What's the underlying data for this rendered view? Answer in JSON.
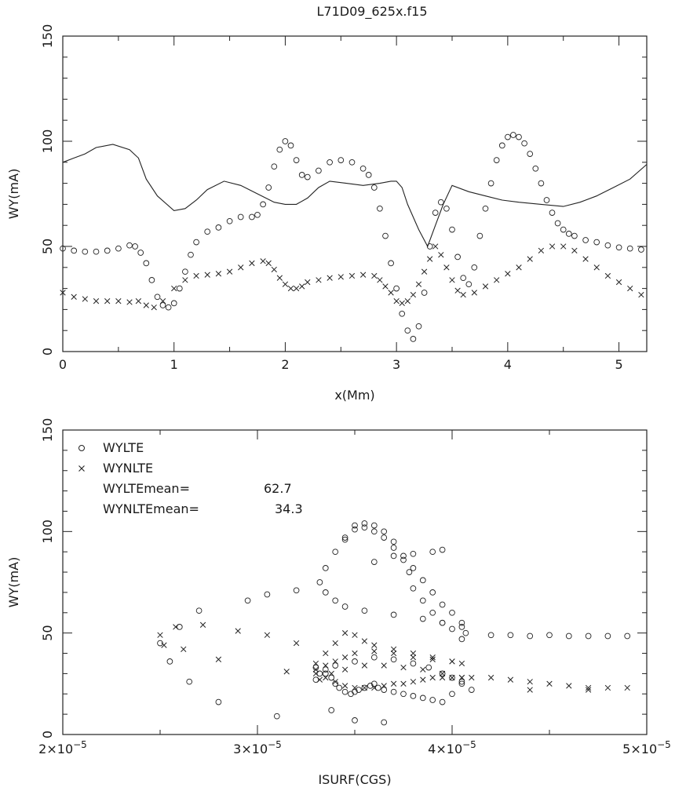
{
  "figure_title": "L71D09_625x.f15",
  "chart_data": [
    {
      "type": "line",
      "xlabel": "x(Mm)",
      "ylabel": "WY(mA)",
      "xlim": [
        0,
        5.25
      ],
      "ylim": [
        0,
        150
      ],
      "xticks": [
        0,
        1,
        2,
        3,
        4,
        5
      ],
      "xtick_labels": [
        "0",
        "1",
        "2",
        "3",
        "4",
        "5"
      ],
      "yticks": [
        0,
        50,
        100,
        150
      ],
      "ytick_labels": [
        "0",
        "50",
        "100",
        "150"
      ],
      "grid": false,
      "series": [
        {
          "style": "line",
          "x": [
            0,
            0.1,
            0.2,
            0.3,
            0.45,
            0.6,
            0.68,
            0.75,
            0.85,
            1.0,
            1.1,
            1.2,
            1.3,
            1.45,
            1.6,
            1.75,
            1.9,
            2.0,
            2.1,
            2.2,
            2.3,
            2.4,
            2.55,
            2.7,
            2.85,
            2.95,
            3.0,
            3.05,
            3.1,
            3.2,
            3.28,
            3.35,
            3.42,
            3.5,
            3.65,
            3.8,
            3.95,
            4.1,
            4.3,
            4.5,
            4.65,
            4.8,
            4.95,
            5.1,
            5.25
          ],
          "y": [
            90,
            92,
            94,
            97,
            98.5,
            96,
            92,
            82,
            74,
            67,
            68,
            72,
            77,
            81,
            79,
            75,
            71,
            70,
            70,
            73,
            78,
            81,
            80,
            79,
            80,
            81,
            81,
            78,
            70,
            58,
            50,
            60,
            70,
            79,
            76,
            74,
            72,
            71,
            70,
            69,
            71,
            74,
            78,
            82,
            89
          ]
        },
        {
          "style": "circle-markers",
          "x": [
            0,
            0.1,
            0.2,
            0.3,
            0.4,
            0.5,
            0.6,
            0.65,
            0.7,
            0.75,
            0.8,
            0.85,
            0.9,
            0.95,
            1.0,
            1.05,
            1.1,
            1.15,
            1.2,
            1.3,
            1.4,
            1.5,
            1.6,
            1.7,
            1.75,
            1.8,
            1.85,
            1.9,
            1.95,
            2.0,
            2.05,
            2.1,
            2.15,
            2.2,
            2.3,
            2.4,
            2.5,
            2.6,
            2.7,
            2.75,
            2.8,
            2.85,
            2.9,
            2.95,
            3.0,
            3.05,
            3.1,
            3.15,
            3.2,
            3.25,
            3.3,
            3.35,
            3.4,
            3.45,
            3.5,
            3.55,
            3.6,
            3.65,
            3.7,
            3.75,
            3.8,
            3.85,
            3.9,
            3.95,
            4.0,
            4.05,
            4.1,
            4.15,
            4.2,
            4.25,
            4.3,
            4.35,
            4.4,
            4.45,
            4.5,
            4.55,
            4.6,
            4.7,
            4.8,
            4.9,
            5.0,
            5.1,
            5.2
          ],
          "y": [
            49,
            48,
            47.5,
            47.5,
            48,
            49,
            50.5,
            50,
            47,
            42,
            34,
            26,
            22,
            21,
            23,
            30,
            38,
            46,
            52,
            57,
            59,
            62,
            64,
            64,
            65,
            70,
            78,
            88,
            96,
            100,
            98,
            91,
            84,
            83,
            86,
            90,
            91,
            90,
            87,
            84,
            78,
            68,
            55,
            42,
            30,
            18,
            10,
            6,
            12,
            28,
            50,
            66,
            71,
            68,
            58,
            45,
            35,
            32,
            40,
            55,
            68,
            80,
            91,
            98,
            102,
            103,
            102,
            99,
            94,
            87,
            80,
            72,
            66,
            61,
            58,
            56,
            55,
            53,
            52,
            50.5,
            49.5,
            49,
            48.5
          ]
        },
        {
          "style": "x-markers",
          "x": [
            0,
            0.1,
            0.2,
            0.3,
            0.4,
            0.5,
            0.6,
            0.68,
            0.75,
            0.82,
            0.9,
            1.0,
            1.1,
            1.2,
            1.3,
            1.4,
            1.5,
            1.6,
            1.7,
            1.8,
            1.85,
            1.9,
            1.95,
            2.0,
            2.05,
            2.1,
            2.15,
            2.2,
            2.3,
            2.4,
            2.5,
            2.6,
            2.7,
            2.8,
            2.85,
            2.9,
            2.95,
            3.0,
            3.05,
            3.1,
            3.15,
            3.2,
            3.25,
            3.3,
            3.35,
            3.4,
            3.45,
            3.5,
            3.55,
            3.6,
            3.7,
            3.8,
            3.9,
            4.0,
            4.1,
            4.2,
            4.3,
            4.4,
            4.5,
            4.6,
            4.7,
            4.8,
            4.9,
            5.0,
            5.1,
            5.2
          ],
          "y": [
            28,
            26,
            25,
            24,
            24,
            24,
            23.5,
            24,
            22,
            21,
            24,
            30,
            34,
            36,
            36.5,
            37,
            38,
            40,
            42,
            43,
            42,
            39,
            35,
            32,
            30,
            30,
            31,
            33,
            34,
            35,
            35.5,
            36,
            36.5,
            36,
            34,
            31,
            28,
            24,
            23,
            24,
            27,
            32,
            38,
            44,
            50,
            46,
            40,
            34,
            29,
            27,
            28,
            31,
            34,
            37,
            40,
            44,
            48,
            50,
            50,
            48,
            44,
            40,
            36,
            33,
            30,
            27
          ]
        }
      ]
    },
    {
      "type": "scatter",
      "xlabel": "ISURF(CGS)",
      "ylabel": "WY(mA)",
      "xlim": [
        2e-05,
        5e-05
      ],
      "ylim": [
        0,
        150
      ],
      "xticks": [
        2e-05,
        3e-05,
        4e-05,
        5e-05
      ],
      "xtick_labels": [
        {
          "base": "2×10",
          "exp": "−5"
        },
        {
          "base": "3×10",
          "exp": "−5"
        },
        {
          "base": "4×10",
          "exp": "−5"
        },
        {
          "base": "5×10",
          "exp": "−5"
        }
      ],
      "yticks": [
        0,
        50,
        100,
        150
      ],
      "ytick_labels": [
        "0",
        "50",
        "100",
        "150"
      ],
      "grid": false,
      "legend_position": "top-left",
      "legend": [
        {
          "marker": "circle",
          "label": "WYLTE"
        },
        {
          "marker": "x",
          "label": "WYNLTE"
        }
      ],
      "annotations": [
        {
          "label": "WYLTEmean=",
          "value": "62.7"
        },
        {
          "label": "WYNLTEmean=",
          "value": "34.3"
        }
      ],
      "series": [
        {
          "name": "WYLTE",
          "marker": "circle",
          "x": [
            2.5e-05,
            2.55e-05,
            2.6e-05,
            2.65e-05,
            2.7e-05,
            2.8e-05,
            2.95e-05,
            3.05e-05,
            3.1e-05,
            3.2e-05,
            3.3e-05,
            3.35e-05,
            3.38e-05,
            3.4e-05,
            3.42e-05,
            3.45e-05,
            3.48e-05,
            3.5e-05,
            3.52e-05,
            3.55e-05,
            3.58e-05,
            3.6e-05,
            3.62e-05,
            3.65e-05,
            3.7e-05,
            3.75e-05,
            3.8e-05,
            3.85e-05,
            3.9e-05,
            3.95e-05,
            4e-05,
            4.05e-05,
            4.1e-05,
            4.2e-05,
            4.3e-05,
            4.4e-05,
            4.5e-05,
            4.6e-05,
            4.7e-05,
            4.8e-05,
            4.9e-05,
            3.45e-05,
            3.5e-05,
            3.55e-05,
            3.6e-05,
            3.65e-05,
            3.7e-05,
            3.75e-05,
            3.8e-05,
            3.85e-05,
            3.9e-05,
            3.95e-05,
            4e-05,
            4.05e-05,
            4.07e-05,
            4.05e-05,
            4e-05,
            3.95e-05,
            3.9e-05,
            3.85e-05,
            3.8e-05,
            3.78e-05,
            3.75e-05,
            3.7e-05,
            3.65e-05,
            3.6e-05,
            3.55e-05,
            3.5e-05,
            3.45e-05,
            3.4e-05,
            3.35e-05,
            3.32e-05,
            3.35e-05,
            3.4e-05,
            3.45e-05,
            3.55e-05,
            3.7e-05,
            3.85e-05,
            3.95e-05,
            4.05e-05,
            3.3e-05,
            3.32e-05,
            3.35e-05,
            3.4e-05,
            3.5e-05,
            3.6e-05,
            3.7e-05,
            3.8e-05,
            3.88e-05,
            3.95e-05,
            4e-05,
            4.05e-05,
            3.65e-05,
            3.5e-05,
            3.38e-05,
            3.6e-05,
            3.7e-05,
            3.8e-05,
            3.9e-05,
            3.95e-05
          ],
          "y": [
            45,
            36,
            53,
            26,
            61,
            16,
            66,
            69,
            9,
            71,
            33,
            30,
            28,
            25,
            23,
            21,
            20,
            21,
            22,
            23,
            24,
            25,
            23,
            22,
            21,
            20,
            19,
            18,
            17,
            16,
            20,
            25,
            22,
            49,
            49,
            48.5,
            49,
            48.5,
            48.5,
            48.5,
            48.5,
            96,
            103,
            104,
            103,
            100,
            95,
            88,
            82,
            76,
            70,
            64,
            60,
            55,
            50,
            47,
            52,
            55,
            60,
            66,
            72,
            80,
            86,
            92,
            97,
            100,
            102,
            101,
            97,
            90,
            82,
            75,
            70,
            66,
            63,
            61,
            59,
            57,
            55,
            53,
            27,
            30,
            32,
            34,
            36,
            38,
            37,
            35,
            33,
            30,
            28,
            26,
            6,
            7,
            12,
            85,
            88,
            89,
            90,
            91
          ]
        },
        {
          "name": "WYNLTE",
          "marker": "x",
          "x": [
            2.5e-05,
            2.52e-05,
            2.58e-05,
            2.62e-05,
            2.72e-05,
            2.8e-05,
            2.9e-05,
            3.05e-05,
            3.15e-05,
            3.2e-05,
            3.3e-05,
            3.35e-05,
            3.4e-05,
            3.45e-05,
            3.5e-05,
            3.55e-05,
            3.6e-05,
            3.65e-05,
            3.7e-05,
            3.75e-05,
            3.8e-05,
            3.85e-05,
            3.9e-05,
            3.95e-05,
            4e-05,
            4.05e-05,
            4.1e-05,
            4.2e-05,
            4.3e-05,
            4.4e-05,
            4.5e-05,
            4.6e-05,
            4.7e-05,
            4.8e-05,
            4.9e-05,
            3.3e-05,
            3.35e-05,
            3.4e-05,
            3.45e-05,
            3.5e-05,
            3.55e-05,
            3.6e-05,
            3.7e-05,
            3.8e-05,
            3.9e-05,
            4e-05,
            4.05e-05,
            3.3e-05,
            3.35e-05,
            3.4e-05,
            3.45e-05,
            3.5e-05,
            3.6e-05,
            3.7e-05,
            3.8e-05,
            3.9e-05,
            4e-05,
            3.32e-05,
            3.38e-05,
            3.45e-05,
            3.55e-05,
            3.65e-05,
            3.75e-05,
            3.85e-05,
            3.95e-05,
            4.05e-05,
            4.4e-05,
            4.7e-05
          ],
          "y": [
            49,
            44,
            53,
            42,
            54,
            37,
            51,
            49,
            31,
            45,
            30,
            28,
            26,
            24,
            23,
            23,
            23,
            24,
            25,
            25,
            26,
            27,
            28,
            28,
            28,
            28,
            28,
            28,
            27,
            26,
            25,
            24,
            23,
            23,
            23,
            35,
            40,
            45,
            50,
            49,
            46,
            44,
            42,
            40,
            38,
            36,
            35,
            32,
            34,
            36,
            38,
            40,
            41,
            40,
            38,
            37,
            36,
            27,
            30,
            32,
            34,
            34,
            33,
            32,
            30,
            28,
            22,
            22
          ]
        }
      ]
    }
  ]
}
